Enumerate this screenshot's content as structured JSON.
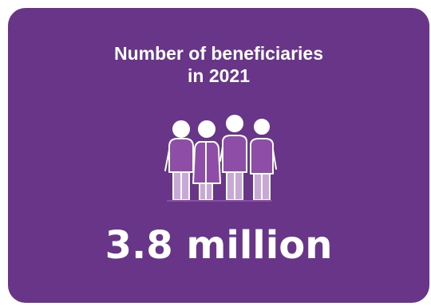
{
  "card": {
    "title_line1": "Number of beneficiaries",
    "title_line2": "in 2021",
    "value": "3.8 million"
  },
  "icon": "group-of-people-icon",
  "colors": {
    "background": "#693589",
    "figure_fill": "#8e4ea7",
    "legs": "#c9a8d8",
    "outline": "#ffffff",
    "text": "#ffffff"
  }
}
